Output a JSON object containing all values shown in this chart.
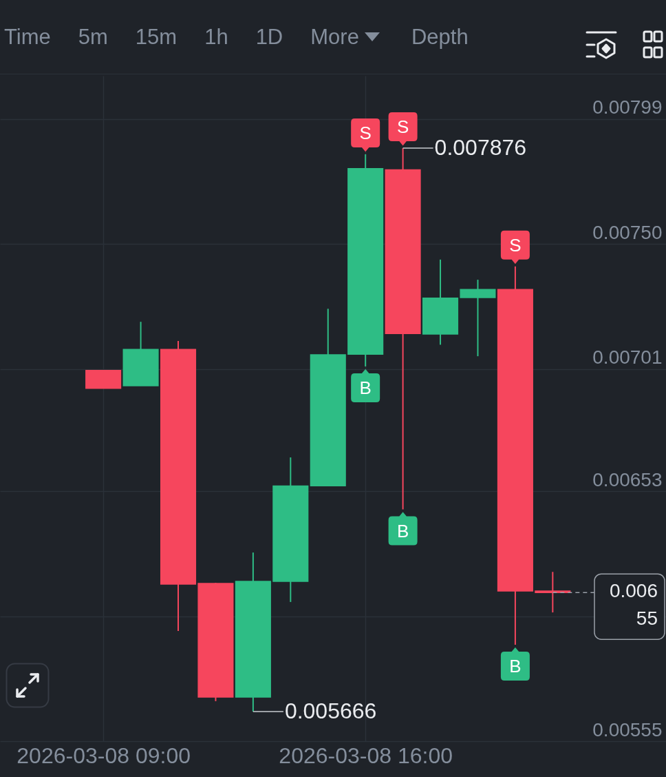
{
  "chart_data": {
    "type": "candlestick",
    "annotations": [
      "Time",
      "5m",
      "15m",
      "1h",
      "1D",
      "More",
      "Depth",
      {
        "text": "S",
        "x": "2026-03-08T16:00",
        "y": 0.007852
      },
      {
        "text": "S",
        "x": "2026-03-08T17:00",
        "y": 0.007876
      },
      {
        "text": "0.007876",
        "x": "2026-03-08T17:00",
        "y": 0.007876
      },
      {
        "text": "S",
        "x": "2026-03-08T20:00",
        "y": 0.007412
      },
      {
        "text": "B",
        "x": "2026-03-08T16:00",
        "y": 0.00702
      },
      {
        "text": "B",
        "x": "2026-03-08T17:00",
        "y": 0.006459
      },
      {
        "text": "B",
        "x": "2026-03-08T20:00",
        "y": 0.005928
      },
      {
        "text": "0.005666",
        "x": "2026-03-08T13:00",
        "y": 0.005666
      }
    ],
    "x": [
      "2026-03-08T09:00",
      "2026-03-08T10:00",
      "2026-03-08T11:00",
      "2026-03-08T12:00",
      "2026-03-08T13:00",
      "2026-03-08T14:00",
      "2026-03-08T15:00",
      "2026-03-08T16:00",
      "2026-03-08T17:00",
      "2026-03-08T18:00",
      "2026-03-08T19:00",
      "2026-03-08T20:00",
      "2026-03-08T21:00"
    ],
    "ohlc": [
      [
        0.007004,
        0.007004,
        0.006934,
        0.006934
      ],
      [
        0.006944,
        0.007195,
        0.006944,
        0.007087
      ],
      [
        0.007087,
        0.00712,
        0.005982,
        0.006166
      ],
      [
        0.006169,
        0.006171,
        0.005707,
        0.005723
      ],
      [
        0.005723,
        0.00629,
        0.005666,
        0.006177
      ],
      [
        0.006177,
        0.006663,
        0.006096,
        0.006551
      ],
      [
        0.006552,
        0.007246,
        0.006552,
        0.007066
      ],
      [
        0.007068,
        0.007852,
        0.00702,
        0.007796
      ],
      [
        0.007791,
        0.007876,
        0.006459,
        0.007149
      ],
      [
        0.007147,
        0.007439,
        0.007105,
        0.007288
      ],
      [
        0.00729,
        0.00736,
        0.00706,
        0.007322
      ],
      [
        0.007322,
        0.007412,
        0.005928,
        0.006139
      ],
      [
        0.006139,
        0.006214,
        0.006055,
        0.006133
      ]
    ],
    "colors": [
      "#f6465d",
      "#2ebd85",
      "#f6465d",
      "#f6465d",
      "#2ebd85",
      "#2ebd85",
      "#2ebd85",
      "#2ebd85",
      "#f6465d",
      "#2ebd85",
      "#2ebd85",
      "#f6465d",
      "#f6465d"
    ],
    "xlim": [
      "2026-03-08T06:20",
      "2026-03-08T23:56"
    ],
    "xticks": [
      {
        "value": "2026-03-08T09:00",
        "label": "2026-03-08 09:00"
      },
      {
        "value": "2026-03-08T16:00",
        "label": "2026-03-08 16:00"
      }
    ],
    "ylim": [
      0.00555,
      0.00816
    ],
    "yticks": [
      0.00799,
      {
        "value": 0.0075,
        "label": "0.00750"
      },
      0.00701,
      0.00653,
      {
        "value": 0.00604,
        "label": null
      },
      0.00555
    ],
    "grid": true,
    "ref_lines": [
      {
        "axis": "y",
        "value": 0.006133,
        "label": "0.006\n55",
        "color": "#9aa0a8",
        "line_style": "dashed"
      }
    ]
  }
}
